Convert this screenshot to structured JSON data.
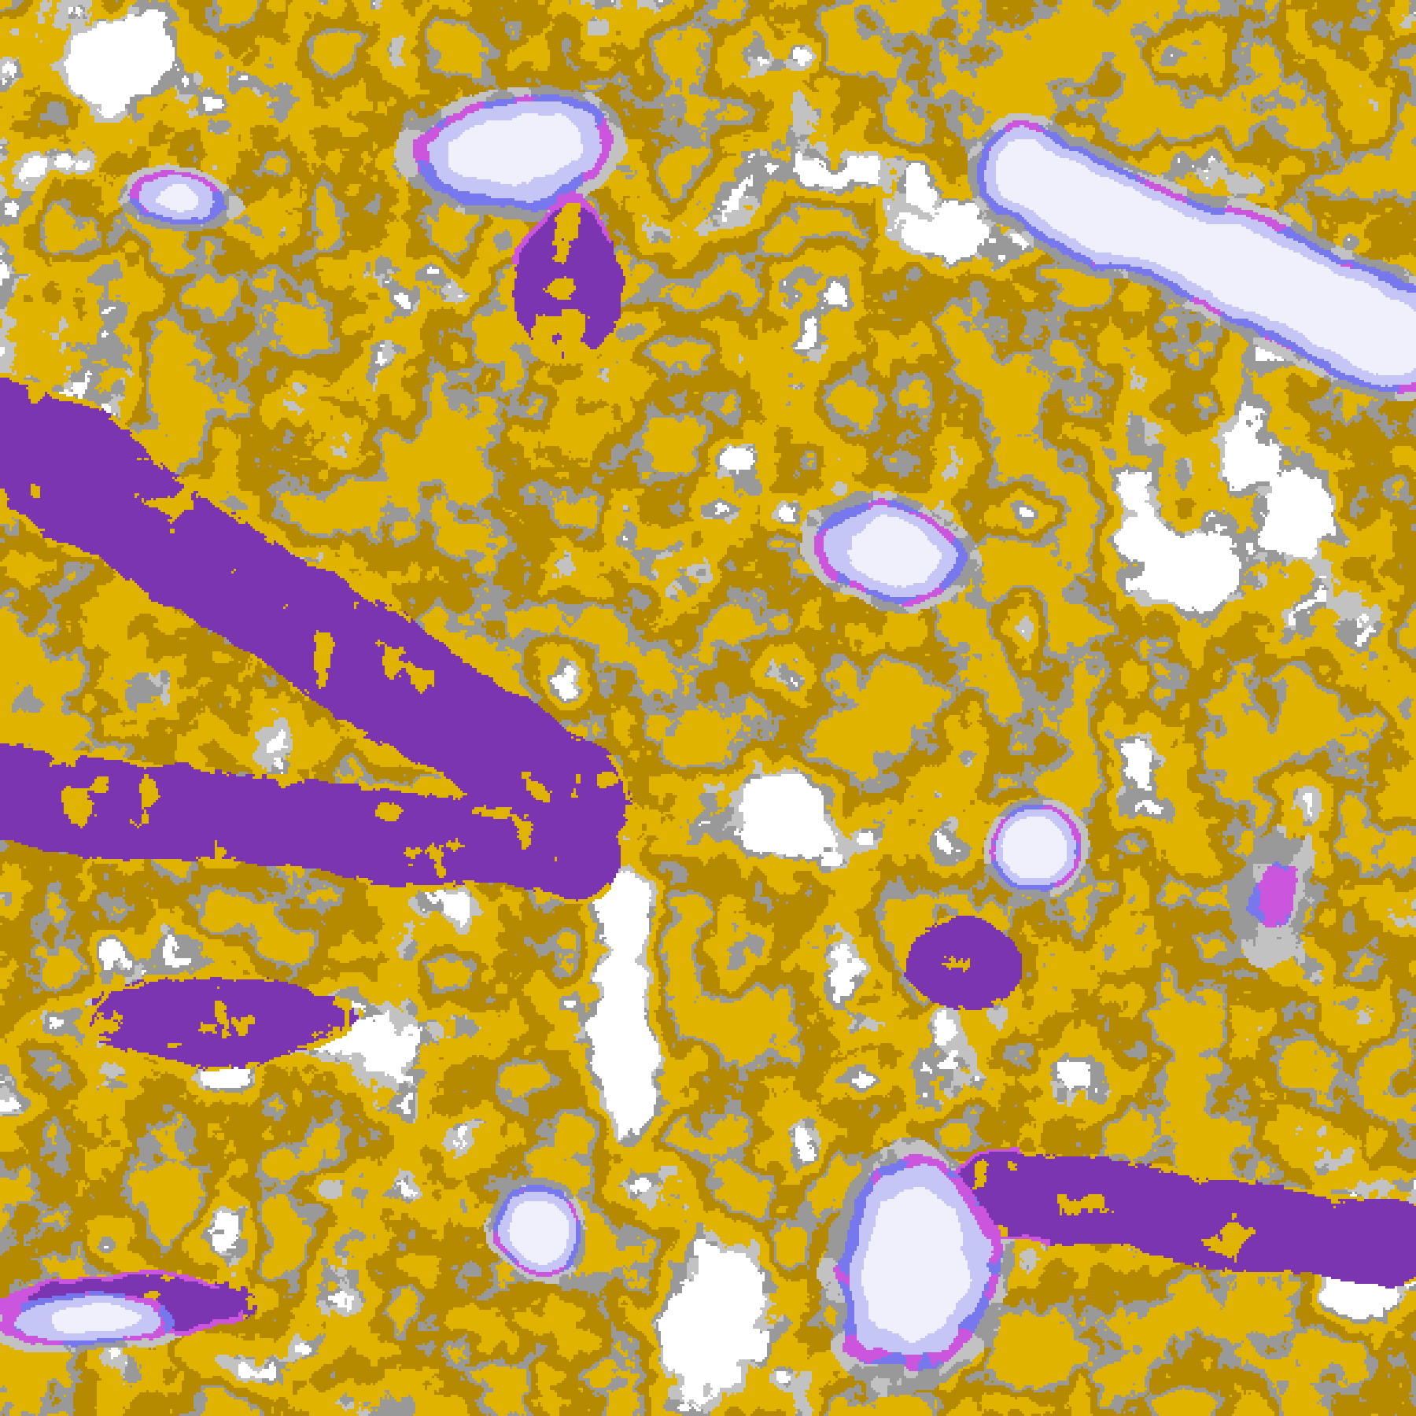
{
  "map": {
    "kind": "satellite cloud-type classification imagery",
    "palette": {
      "clear": "#ffffff",
      "low_cloud_gold": "#dfb300",
      "low_cloud_dark_gold": "#b58a00",
      "mid_cloud_gray": "#999999",
      "mid_cloud_light_gray": "#c2c2c2",
      "high_cloud_blue": "#7777ee",
      "high_cloud_lavender": "#c6c6f6",
      "deep_convection_pale": "#f0f0fc",
      "thin_cirrus_purple": "#7b35b0",
      "cirrus_magenta": "#cc55dd"
    }
  }
}
